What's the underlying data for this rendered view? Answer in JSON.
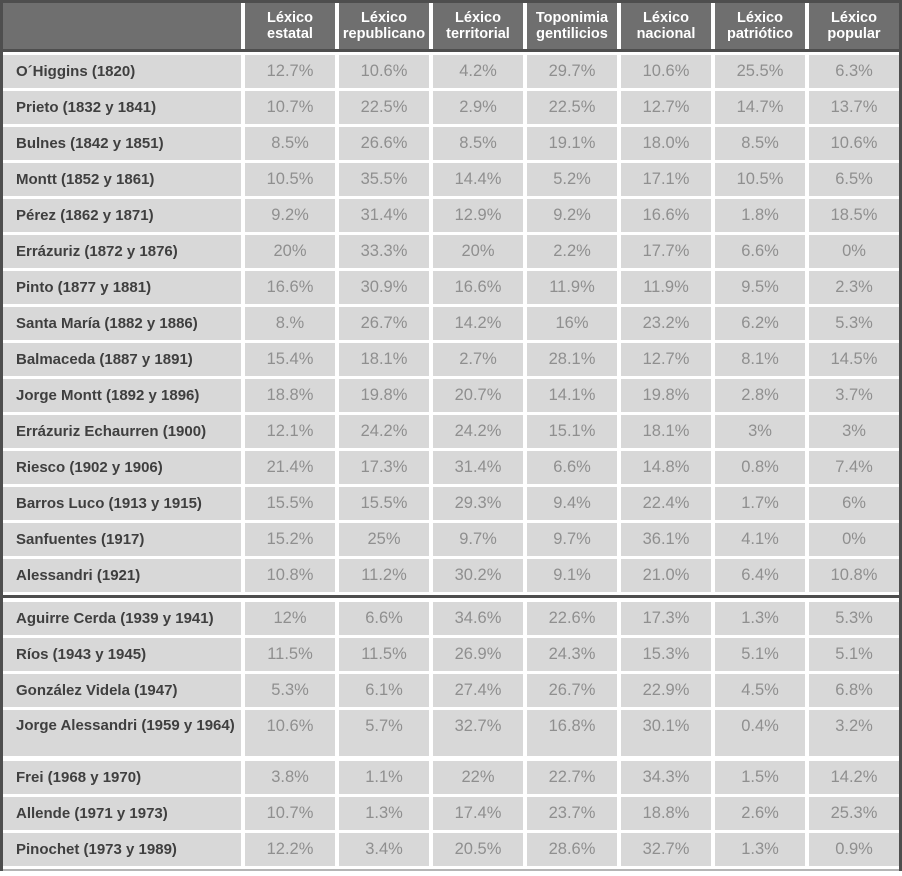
{
  "colors": {
    "header_bg": "#6f6f6f",
    "header_text": "#ffffff",
    "cell_bg": "#d8d8d8",
    "label_text": "#3f3f3f",
    "value_text": "#8f8f8f",
    "border_dark": "#4e4e4e",
    "bottom_line": "#b5b5b5"
  },
  "chart_data": {
    "type": "table",
    "corner_label": "",
    "columns": [
      "Léxico estatal",
      "Léxico republicano",
      "Léxico territorial",
      "Toponimia gentilicios",
      "Léxico nacional",
      "Léxico patriótico",
      "Léxico popular"
    ],
    "groups": [
      [
        {
          "label": "O´Higgins (1820)",
          "values": [
            "12.7%",
            "10.6%",
            "4.2%",
            "29.7%",
            "10.6%",
            "25.5%",
            "6.3%"
          ]
        },
        {
          "label": "Prieto (1832 y 1841)",
          "values": [
            "10.7%",
            "22.5%",
            "2.9%",
            "22.5%",
            "12.7%",
            "14.7%",
            "13.7%"
          ]
        },
        {
          "label": "Bulnes (1842 y 1851)",
          "values": [
            "8.5%",
            "26.6%",
            "8.5%",
            "19.1%",
            "18.0%",
            "8.5%",
            "10.6%"
          ]
        },
        {
          "label": "Montt (1852 y 1861)",
          "values": [
            "10.5%",
            "35.5%",
            "14.4%",
            "5.2%",
            "17.1%",
            "10.5%",
            "6.5%"
          ]
        },
        {
          "label": "Pérez (1862 y 1871)",
          "values": [
            "9.2%",
            "31.4%",
            "12.9%",
            "9.2%",
            "16.6%",
            "1.8%",
            "18.5%"
          ]
        },
        {
          "label": "Errázuriz (1872 y 1876)",
          "values": [
            "20%",
            "33.3%",
            "20%",
            "2.2%",
            "17.7%",
            "6.6%",
            "0%"
          ]
        },
        {
          "label": "Pinto (1877 y 1881)",
          "values": [
            "16.6%",
            "30.9%",
            "16.6%",
            "11.9%",
            "11.9%",
            "9.5%",
            "2.3%"
          ]
        },
        {
          "label": "Santa María (1882 y 1886)",
          "values": [
            "8.%",
            "26.7%",
            "14.2%",
            "16%",
            "23.2%",
            "6.2%",
            "5.3%"
          ]
        },
        {
          "label": "Balmaceda (1887 y 1891)",
          "values": [
            "15.4%",
            "18.1%",
            "2.7%",
            "28.1%",
            "12.7%",
            "8.1%",
            "14.5%"
          ]
        },
        {
          "label": "Jorge Montt (1892 y 1896)",
          "values": [
            "18.8%",
            "19.8%",
            "20.7%",
            "14.1%",
            "19.8%",
            "2.8%",
            "3.7%"
          ]
        },
        {
          "label": "Errázuriz Echaurren (1900)",
          "values": [
            "12.1%",
            "24.2%",
            "24.2%",
            "15.1%",
            "18.1%",
            "3%",
            "3%"
          ]
        },
        {
          "label": "Riesco (1902 y 1906)",
          "values": [
            "21.4%",
            "17.3%",
            "31.4%",
            "6.6%",
            "14.8%",
            "0.8%",
            "7.4%"
          ]
        },
        {
          "label": "Barros Luco (1913 y 1915)",
          "values": [
            "15.5%",
            "15.5%",
            "29.3%",
            "9.4%",
            "22.4%",
            "1.7%",
            "6%"
          ]
        },
        {
          "label": "Sanfuentes (1917)",
          "values": [
            "15.2%",
            "25%",
            "9.7%",
            "9.7%",
            "36.1%",
            "4.1%",
            "0%"
          ]
        },
        {
          "label": "Alessandri (1921)",
          "values": [
            "10.8%",
            "11.2%",
            "30.2%",
            "9.1%",
            "21.0%",
            "6.4%",
            "10.8%"
          ]
        }
      ],
      [
        {
          "label": "Aguirre Cerda (1939 y 1941)",
          "values": [
            "12%",
            "6.6%",
            "34.6%",
            "22.6%",
            "17.3%",
            "1.3%",
            "5.3%"
          ]
        },
        {
          "label": "Ríos (1943 y 1945)",
          "values": [
            "11.5%",
            "11.5%",
            "26.9%",
            "24.3%",
            "15.3%",
            "5.1%",
            "5.1%"
          ]
        },
        {
          "label": "González Videla (1947)",
          "values": [
            "5.3%",
            "6.1%",
            "27.4%",
            "26.7%",
            "22.9%",
            "4.5%",
            "6.8%"
          ]
        },
        {
          "label": "Jorge Alessandri (1959 y 1964)",
          "values": [
            "10.6%",
            "5.7%",
            "32.7%",
            "16.8%",
            "30.1%",
            "0.4%",
            "3.2%"
          ]
        }
      ],
      [
        {
          "label": "Frei (1968 y 1970)",
          "values": [
            "3.8%",
            "1.1%",
            "22%",
            "22.7%",
            "34.3%",
            "1.5%",
            "14.2%"
          ]
        },
        {
          "label": "Allende (1971 y 1973)",
          "values": [
            "10.7%",
            "1.3%",
            "17.4%",
            "23.7%",
            "18.8%",
            "2.6%",
            "25.3%"
          ]
        },
        {
          "label": "Pinochet (1973 y 1989)",
          "values": [
            "12.2%",
            "3.4%",
            "20.5%",
            "28.6%",
            "32.7%",
            "1.3%",
            "0.9%"
          ]
        }
      ]
    ]
  }
}
